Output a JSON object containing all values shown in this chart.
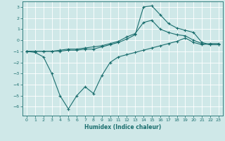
{
  "background_color": "#cfe8e8",
  "grid_color": "#ffffff",
  "line_color": "#1a6e6e",
  "series": {
    "line1": {
      "x": [
        0,
        1,
        2,
        3,
        4,
        5,
        6,
        7,
        8,
        9,
        10,
        11,
        12,
        13,
        14,
        15,
        16,
        17,
        18,
        19,
        20,
        21,
        22,
        23
      ],
      "y": [
        -1.0,
        -1.1,
        -1.5,
        -3.0,
        -5.0,
        -6.2,
        -5.0,
        -4.2,
        -4.8,
        -3.2,
        -2.0,
        -1.5,
        -1.3,
        -1.1,
        -0.9,
        -0.7,
        -0.5,
        -0.3,
        -0.1,
        0.2,
        -0.2,
        -0.4,
        -0.3,
        -0.3
      ]
    },
    "line2": {
      "x": [
        0,
        1,
        2,
        3,
        4,
        5,
        6,
        7,
        8,
        9,
        10,
        11,
        12,
        13,
        14,
        15,
        16,
        17,
        18,
        19,
        20,
        21,
        22,
        23
      ],
      "y": [
        -1.0,
        -1.0,
        -1.0,
        -1.0,
        -1.0,
        -0.9,
        -0.9,
        -0.8,
        -0.8,
        -0.6,
        -0.4,
        -0.2,
        0.1,
        0.5,
        3.0,
        3.1,
        2.3,
        1.5,
        1.1,
        0.9,
        0.7,
        -0.2,
        -0.4,
        -0.4
      ]
    },
    "line3": {
      "x": [
        0,
        1,
        2,
        3,
        4,
        5,
        6,
        7,
        8,
        9,
        10,
        11,
        12,
        13,
        14,
        15,
        16,
        17,
        18,
        19,
        20,
        21,
        22,
        23
      ],
      "y": [
        -1.0,
        -1.0,
        -1.0,
        -1.0,
        -0.9,
        -0.8,
        -0.8,
        -0.7,
        -0.6,
        -0.5,
        -0.3,
        -0.1,
        0.3,
        0.6,
        1.6,
        1.8,
        1.0,
        0.7,
        0.5,
        0.4,
        0.0,
        -0.3,
        -0.4,
        -0.4
      ]
    }
  },
  "xlim": [
    -0.5,
    23.5
  ],
  "ylim": [
    -6.8,
    3.5
  ],
  "yticks": [
    -6,
    -5,
    -4,
    -3,
    -2,
    -1,
    0,
    1,
    2,
    3
  ],
  "xticks": [
    0,
    1,
    2,
    3,
    4,
    5,
    6,
    7,
    8,
    9,
    10,
    11,
    12,
    13,
    14,
    15,
    16,
    17,
    18,
    19,
    20,
    21,
    22,
    23
  ],
  "xlabel": "Humidex (Indice chaleur)",
  "marker": "+",
  "markersize": 3,
  "markeredgewidth": 0.8,
  "linewidth": 0.8,
  "tick_labelsize": 4.5,
  "xlabel_fontsize": 5.5
}
